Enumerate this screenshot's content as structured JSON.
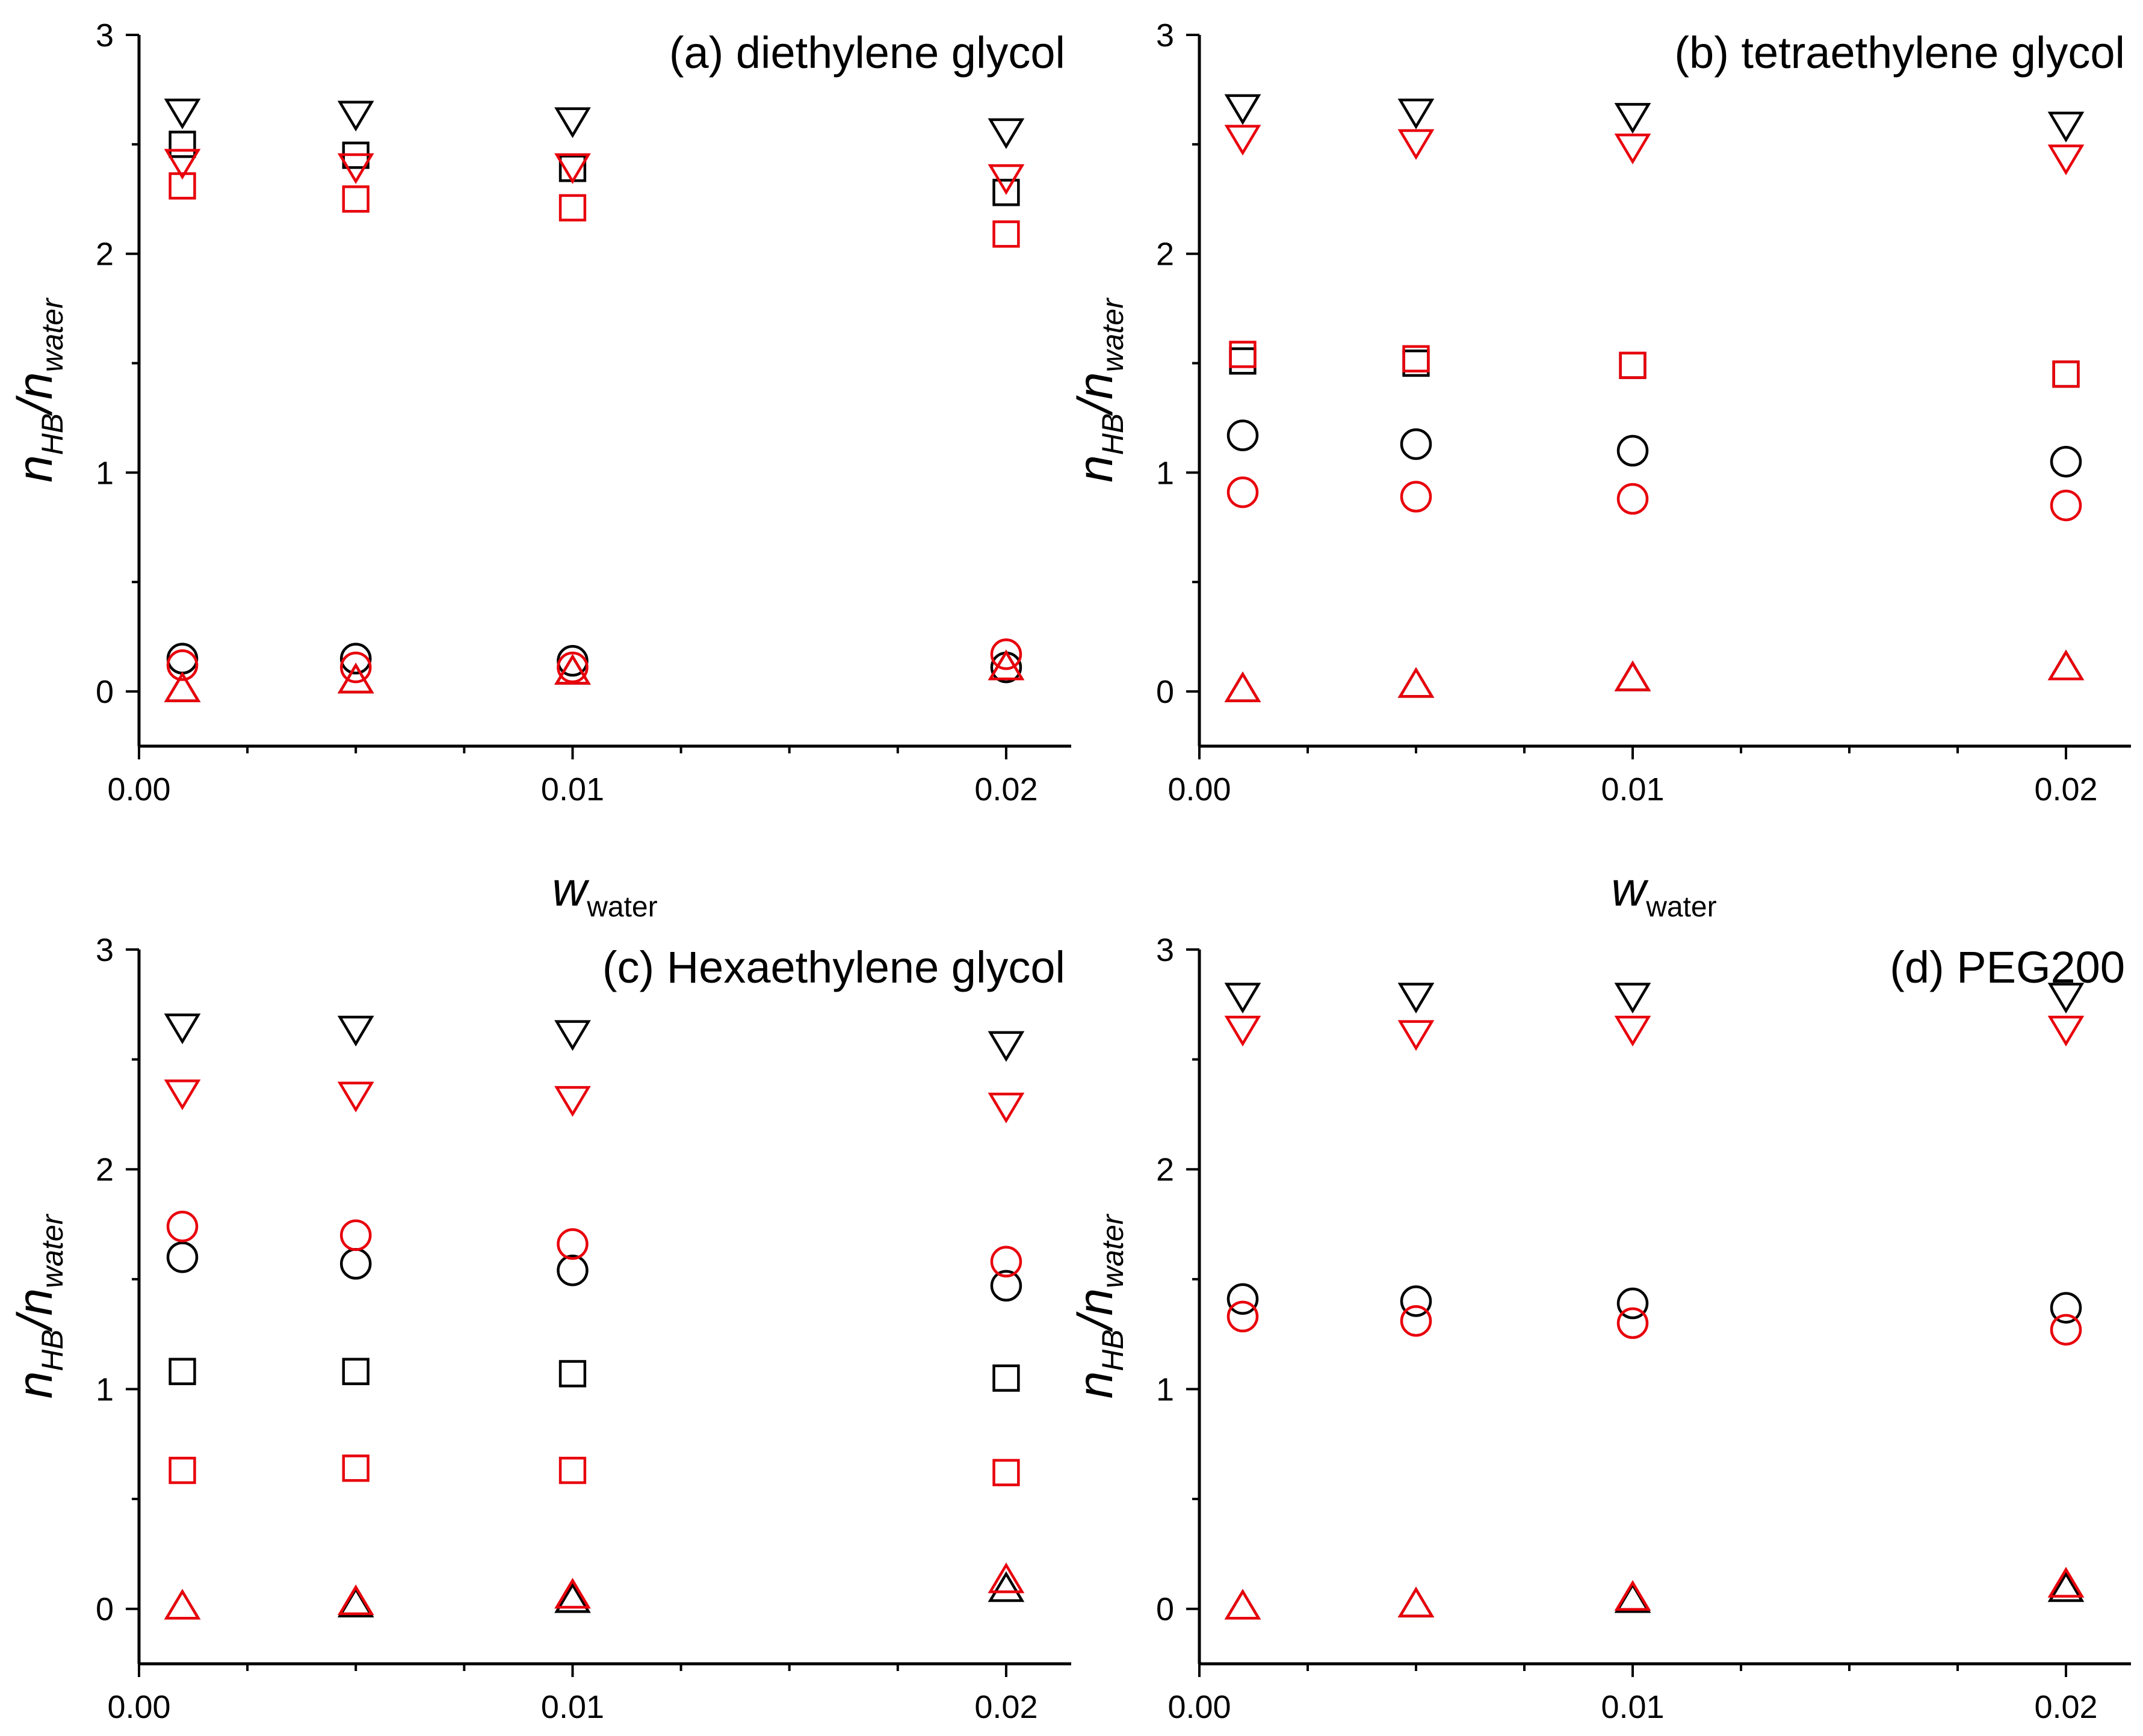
{
  "figure": {
    "x_axis_label": {
      "main": "w",
      "sub": "water"
    },
    "y_axis_label": {
      "main": "n",
      "sub1": "HB",
      "slash": "/",
      "main2": "n",
      "sub2": "water"
    },
    "x_ticks": [
      "0.00",
      "0.01",
      "0.02"
    ],
    "y_ticks": [
      "0",
      "1",
      "2",
      "3"
    ]
  },
  "chart_data": [
    {
      "type": "scatter",
      "title": "(a) diethylene glycol",
      "xlim": [
        0.0,
        0.0215
      ],
      "ylim": [
        -0.25,
        3.0
      ],
      "x": [
        0.001,
        0.005,
        0.01,
        0.02
      ],
      "series": [
        {
          "marker": "triangle-down",
          "color": "#000000",
          "values": [
            2.65,
            2.64,
            2.61,
            2.56
          ]
        },
        {
          "marker": "square",
          "color": "#000000",
          "values": [
            2.5,
            2.45,
            2.39,
            2.28
          ]
        },
        {
          "marker": "circle",
          "color": "#000000",
          "values": [
            0.15,
            0.15,
            0.14,
            0.11
          ]
        },
        {
          "marker": "triangle-up",
          "color": "#000000",
          "values": [
            0.01,
            0.05,
            0.09,
            0.11
          ]
        },
        {
          "marker": "triangle-down",
          "color": "#e8000b",
          "values": [
            2.42,
            2.4,
            2.4,
            2.35
          ]
        },
        {
          "marker": "square",
          "color": "#e8000b",
          "values": [
            2.31,
            2.25,
            2.21,
            2.09
          ]
        },
        {
          "marker": "circle",
          "color": "#e8000b",
          "values": [
            0.12,
            0.11,
            0.11,
            0.17
          ]
        },
        {
          "marker": "triangle-up",
          "color": "#e8000b",
          "values": [
            0.01,
            0.05,
            0.09,
            0.11
          ]
        }
      ]
    },
    {
      "type": "scatter",
      "title": "(b) tetraethylene glycol",
      "xlim": [
        0.0,
        0.0215
      ],
      "ylim": [
        -0.25,
        3.0
      ],
      "x": [
        0.001,
        0.005,
        0.01,
        0.02
      ],
      "series": [
        {
          "marker": "triangle-down",
          "color": "#000000",
          "values": [
            2.67,
            2.65,
            2.63,
            2.59
          ]
        },
        {
          "marker": "square",
          "color": "#000000",
          "values": [
            1.51,
            1.5,
            1.49,
            1.45
          ]
        },
        {
          "marker": "circle",
          "color": "#000000",
          "values": [
            1.17,
            1.13,
            1.1,
            1.05
          ]
        },
        {
          "marker": "triangle-up",
          "color": "#000000",
          "values": [
            0.01,
            0.03,
            0.06,
            0.11
          ]
        },
        {
          "marker": "triangle-down",
          "color": "#e8000b",
          "values": [
            2.53,
            2.51,
            2.49,
            2.44
          ]
        },
        {
          "marker": "square",
          "color": "#e8000b",
          "values": [
            1.54,
            1.52,
            1.49,
            1.45
          ]
        },
        {
          "marker": "circle",
          "color": "#e8000b",
          "values": [
            0.91,
            0.89,
            0.88,
            0.85
          ]
        },
        {
          "marker": "triangle-up",
          "color": "#e8000b",
          "values": [
            0.01,
            0.03,
            0.06,
            0.11
          ]
        }
      ]
    },
    {
      "type": "scatter",
      "title": "(c) Hexaethylene glycol",
      "xlim": [
        0.0,
        0.0215
      ],
      "ylim": [
        -0.25,
        3.0
      ],
      "x": [
        0.001,
        0.005,
        0.01,
        0.02
      ],
      "series": [
        {
          "marker": "triangle-down",
          "color": "#000000",
          "values": [
            2.65,
            2.64,
            2.62,
            2.57
          ]
        },
        {
          "marker": "circle",
          "color": "#000000",
          "values": [
            1.6,
            1.57,
            1.54,
            1.47
          ]
        },
        {
          "marker": "square",
          "color": "#000000",
          "values": [
            1.08,
            1.08,
            1.07,
            1.05
          ]
        },
        {
          "marker": "triangle-up",
          "color": "#000000",
          "values": [
            0.01,
            0.02,
            0.04,
            0.09
          ]
        },
        {
          "marker": "triangle-down",
          "color": "#e8000b",
          "values": [
            2.35,
            2.34,
            2.32,
            2.29
          ]
        },
        {
          "marker": "circle",
          "color": "#e8000b",
          "values": [
            1.74,
            1.7,
            1.66,
            1.58
          ]
        },
        {
          "marker": "square",
          "color": "#e8000b",
          "values": [
            0.63,
            0.64,
            0.63,
            0.62
          ]
        },
        {
          "marker": "triangle-up",
          "color": "#e8000b",
          "values": [
            0.01,
            0.03,
            0.06,
            0.13
          ]
        }
      ]
    },
    {
      "type": "scatter",
      "title": "(d) PEG200",
      "xlim": [
        0.0,
        0.0215
      ],
      "ylim": [
        -0.25,
        3.0
      ],
      "x": [
        0.001,
        0.005,
        0.01,
        0.02
      ],
      "series": [
        {
          "marker": "triangle-down",
          "color": "#000000",
          "values": [
            2.79,
            2.79,
            2.79,
            2.79
          ]
        },
        {
          "marker": "circle",
          "color": "#000000",
          "values": [
            1.41,
            1.4,
            1.39,
            1.37
          ]
        },
        {
          "marker": "triangle-up",
          "color": "#000000",
          "values": [
            0.01,
            0.02,
            0.04,
            0.09
          ]
        },
        {
          "marker": "triangle-down",
          "color": "#e8000b",
          "values": [
            2.64,
            2.62,
            2.64,
            2.64
          ]
        },
        {
          "marker": "circle",
          "color": "#e8000b",
          "values": [
            1.33,
            1.31,
            1.3,
            1.27
          ]
        },
        {
          "marker": "triangle-up",
          "color": "#e8000b",
          "values": [
            0.01,
            0.02,
            0.05,
            0.11
          ]
        }
      ]
    }
  ]
}
